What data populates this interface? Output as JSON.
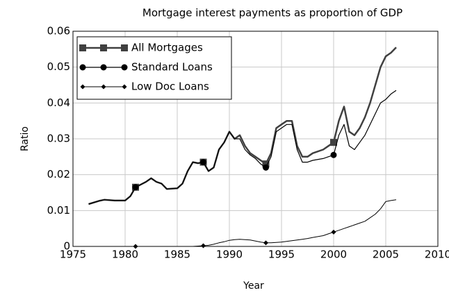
{
  "chart_data": {
    "type": "line",
    "title": "Mortgage interest payments as proportion of GDP",
    "x_label": "Year",
    "y_label": "Ratio",
    "x": [
      1976.5,
      1977.5,
      1978,
      1979,
      1980,
      1980.5,
      1981,
      1982,
      1982.5,
      1983,
      1983.5,
      1984,
      1985,
      1985.5,
      1986,
      1986.5,
      1987,
      1987.5,
      1988,
      1988.5,
      1989,
      1989.5,
      1990,
      1990.5,
      1991,
      1991.5,
      1992,
      1992.5,
      1993,
      1993.5,
      1994,
      1994.5,
      1995,
      1995.5,
      1996,
      1996.5,
      1997,
      1997.5,
      1998,
      1999,
      1999.5,
      2000,
      2000.5,
      2001,
      2001.5,
      2002,
      2002.5,
      2003,
      2003.5,
      2004,
      2004.5,
      2005,
      2005.5,
      2006
    ],
    "series": [
      {
        "name": "All Mortgages",
        "color": "#404040",
        "width": 2.5,
        "marker": "square",
        "values": [
          0.0118,
          0.0127,
          0.013,
          0.0128,
          0.0128,
          0.014,
          0.0165,
          0.018,
          0.019,
          0.018,
          0.0175,
          0.016,
          0.0162,
          0.0175,
          0.021,
          0.0235,
          0.0232,
          0.0235,
          0.021,
          0.022,
          0.027,
          0.029,
          0.032,
          0.03,
          0.031,
          0.028,
          0.026,
          0.025,
          0.024,
          0.023,
          0.026,
          0.033,
          0.034,
          0.035,
          0.035,
          0.028,
          0.025,
          0.025,
          0.026,
          0.027,
          0.028,
          0.029,
          0.035,
          0.039,
          0.032,
          0.031,
          0.033,
          0.036,
          0.04,
          0.045,
          0.05,
          0.053,
          0.054,
          0.0555
        ]
      },
      {
        "name": "Standard Loans",
        "color": "#000000",
        "width": 1.2,
        "marker": "circle",
        "values": [
          0.0118,
          0.0127,
          0.013,
          0.0128,
          0.0128,
          0.014,
          0.0165,
          0.018,
          0.019,
          0.018,
          0.0175,
          0.016,
          0.0162,
          0.0175,
          0.021,
          0.0235,
          0.0232,
          0.0235,
          0.021,
          0.022,
          0.027,
          0.029,
          0.032,
          0.03,
          0.03,
          0.027,
          0.0255,
          0.0245,
          0.023,
          0.022,
          0.025,
          0.032,
          0.033,
          0.034,
          0.034,
          0.027,
          0.0235,
          0.0235,
          0.024,
          0.0245,
          0.025,
          0.0255,
          0.031,
          0.034,
          0.028,
          0.027,
          0.029,
          0.031,
          0.034,
          0.037,
          0.04,
          0.041,
          0.0425,
          0.0435
        ]
      },
      {
        "name": "Low Doc Loans",
        "color": "#000000",
        "width": 1,
        "marker": "diamond",
        "values": [
          null,
          null,
          null,
          null,
          null,
          null,
          0,
          0,
          0,
          0,
          0,
          0,
          0,
          0,
          0,
          0,
          0.0001,
          0.0002,
          0.0003,
          0.0006,
          0.001,
          0.0013,
          0.0017,
          0.0019,
          0.002,
          0.0019,
          0.0018,
          0.0015,
          0.0012,
          0.001,
          0.001,
          0.0011,
          0.0012,
          0.0014,
          0.0016,
          0.0018,
          0.002,
          0.0022,
          0.0025,
          0.003,
          0.0035,
          0.004,
          0.0045,
          0.005,
          0.0055,
          0.006,
          0.0065,
          0.007,
          0.008,
          0.009,
          0.0105,
          0.0125,
          0.0128,
          0.013
        ]
      }
    ],
    "marker_x": [
      1981,
      1987.5,
      1993.5,
      2000
    ],
    "xlim": [
      1975,
      2010
    ],
    "xticks": [
      1975,
      1980,
      1985,
      1990,
      1995,
      2000,
      2005,
      2010
    ],
    "ylim": [
      0,
      0.06
    ],
    "yticks": [
      0,
      0.01,
      0.02,
      0.03,
      0.04,
      0.05,
      0.06
    ],
    "grid": true,
    "legend": "upper left"
  }
}
